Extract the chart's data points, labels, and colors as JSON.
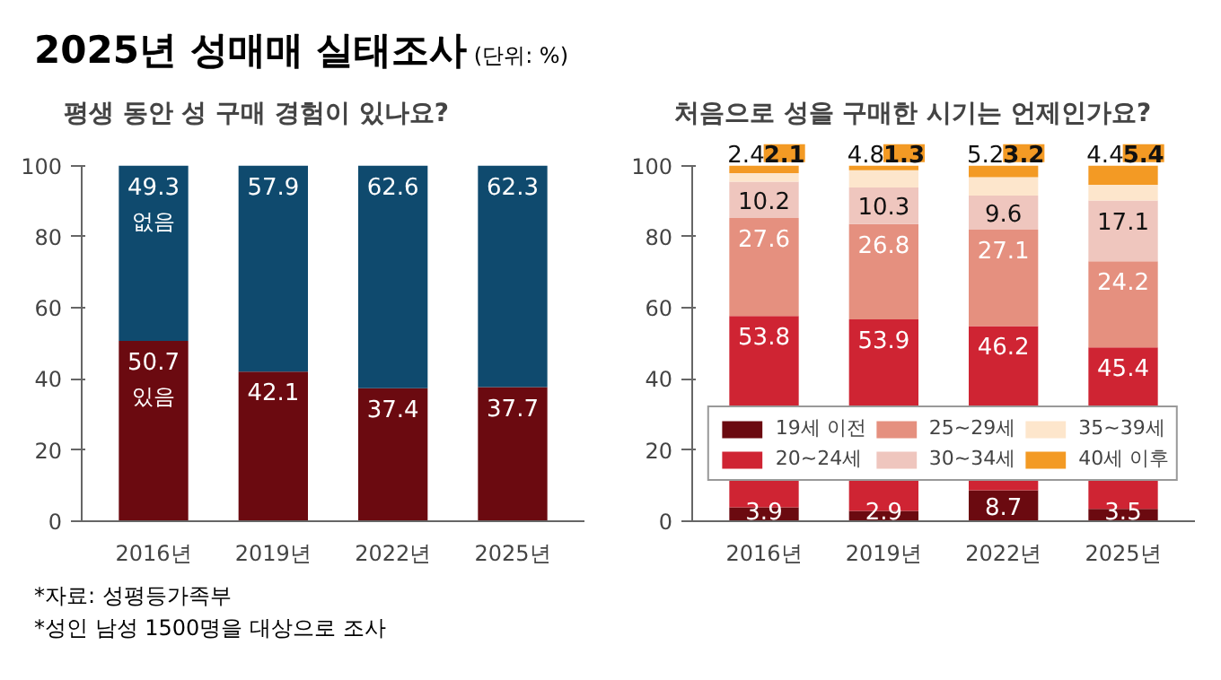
{
  "chart_data": [
    {
      "type": "bar",
      "stacked": true,
      "title": "평생 동안 성 구매 경험이 있나요?",
      "categories": [
        "2016년",
        "2019년",
        "2022년",
        "2025년"
      ],
      "ylim": [
        0,
        100
      ],
      "yticks": [
        0,
        20,
        40,
        60,
        80,
        100
      ],
      "data_labels": true,
      "legend": false,
      "annotations": [
        "2025년 성매매 실태조사",
        "(단위: %)",
        "*자료: 성평등가족부",
        "*성인 남성 1500명을 대상으로 조사"
      ],
      "series": [
        {
          "name": "있음",
          "color": "#6b0a10",
          "values": [
            50.7,
            42.1,
            37.4,
            37.7
          ]
        },
        {
          "name": "없음",
          "color": "#0f4a6e",
          "values": [
            49.3,
            57.9,
            62.6,
            62.3
          ]
        }
      ]
    },
    {
      "type": "bar",
      "stacked": true,
      "title": "처음으로 성을 구매한 시기는 언제인가요?",
      "categories": [
        "2016년",
        "2019년",
        "2022년",
        "2025년"
      ],
      "ylim": [
        0,
        100
      ],
      "yticks": [
        0,
        20,
        40,
        60,
        80,
        100
      ],
      "data_labels": true,
      "legend": "bottom",
      "series": [
        {
          "name": "19세 이전",
          "color": "#6b0a10",
          "values": [
            3.9,
            2.9,
            8.7,
            3.5
          ]
        },
        {
          "name": "20~24세",
          "color": "#cf2433",
          "values": [
            53.8,
            53.9,
            46.2,
            45.4
          ]
        },
        {
          "name": "25~29세",
          "color": "#e5907f",
          "values": [
            27.6,
            26.8,
            27.1,
            24.2
          ]
        },
        {
          "name": "30~34세",
          "color": "#efc6be",
          "values": [
            10.2,
            10.3,
            9.6,
            17.1
          ]
        },
        {
          "name": "35~39세",
          "color": "#fde6cc",
          "values": [
            2.4,
            4.8,
            5.2,
            4.4
          ]
        },
        {
          "name": "40세 이후",
          "color": "#f39a24",
          "values": [
            2.1,
            1.3,
            3.2,
            5.4
          ]
        }
      ]
    }
  ]
}
